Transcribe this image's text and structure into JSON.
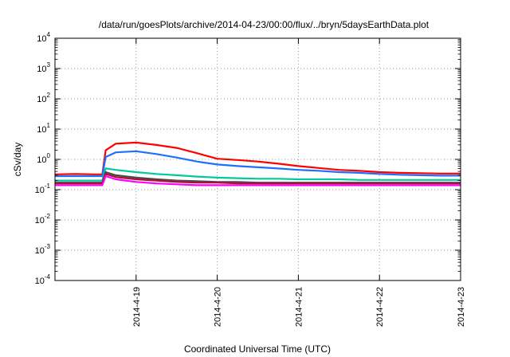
{
  "chart_data": {
    "type": "line",
    "title": "/data/run/goesPlots/archive/2014-04-23/00:00/flux/../bryn/5daysEarthData.plot",
    "xlabel": "Coordinated Universal Time (UTC)",
    "ylabel": "cSv/day",
    "yscale": "log",
    "ylim": [
      0.0001,
      10000
    ],
    "xlim": [
      "2014-04-18 00:00",
      "2014-04-23 00:00"
    ],
    "grid": true,
    "yticks": [
      {
        "base": "10",
        "exp": "-4",
        "value": 0.0001
      },
      {
        "base": "10",
        "exp": "-3",
        "value": 0.001
      },
      {
        "base": "10",
        "exp": "-2",
        "value": 0.01
      },
      {
        "base": "10",
        "exp": "-1",
        "value": 0.1
      },
      {
        "base": "10",
        "exp": "0",
        "value": 1
      },
      {
        "base": "10",
        "exp": "1",
        "value": 10
      },
      {
        "base": "10",
        "exp": "2",
        "value": 100
      },
      {
        "base": "10",
        "exp": "3",
        "value": 1000
      },
      {
        "base": "10",
        "exp": "4",
        "value": 10000
      }
    ],
    "xticks": [
      {
        "label": "2014-4-19",
        "date": "2014-04-19"
      },
      {
        "label": "2014-4-20",
        "date": "2014-04-20"
      },
      {
        "label": "2014-4-21",
        "date": "2014-04-21"
      },
      {
        "label": "2014-4-22",
        "date": "2014-04-22"
      },
      {
        "label": "2014-4-23",
        "date": "2014-04-23"
      }
    ],
    "x": [
      "2014-04-18 00:00",
      "2014-04-18 06:00",
      "2014-04-18 12:00",
      "2014-04-18 14:00",
      "2014-04-18 15:00",
      "2014-04-18 18:00",
      "2014-04-19 00:00",
      "2014-04-19 06:00",
      "2014-04-19 12:00",
      "2014-04-19 18:00",
      "2014-04-20 00:00",
      "2014-04-20 06:00",
      "2014-04-20 12:00",
      "2014-04-20 18:00",
      "2014-04-21 00:00",
      "2014-04-21 06:00",
      "2014-04-21 12:00",
      "2014-04-21 18:00",
      "2014-04-22 00:00",
      "2014-04-22 06:00",
      "2014-04-22 12:00",
      "2014-04-22 18:00",
      "2014-04-23 00:00"
    ],
    "series": [
      {
        "color": "#ff0000",
        "values": [
          0.32,
          0.33,
          0.32,
          0.32,
          2.0,
          3.3,
          3.6,
          3.0,
          2.4,
          1.6,
          1.05,
          0.95,
          0.85,
          0.72,
          0.6,
          0.52,
          0.45,
          0.42,
          0.38,
          0.36,
          0.35,
          0.34,
          0.34
        ]
      },
      {
        "color": "#1f6fff",
        "values": [
          0.28,
          0.28,
          0.28,
          0.28,
          1.2,
          1.7,
          1.85,
          1.5,
          1.15,
          0.85,
          0.68,
          0.6,
          0.55,
          0.5,
          0.45,
          0.42,
          0.38,
          0.36,
          0.33,
          0.31,
          0.3,
          0.29,
          0.29
        ]
      },
      {
        "color": "#00c8a0",
        "values": [
          0.2,
          0.2,
          0.2,
          0.2,
          0.5,
          0.45,
          0.38,
          0.33,
          0.3,
          0.27,
          0.25,
          0.24,
          0.23,
          0.23,
          0.22,
          0.22,
          0.22,
          0.21,
          0.21,
          0.21,
          0.21,
          0.21,
          0.21
        ]
      },
      {
        "color": "#4a4a4a",
        "values": [
          0.17,
          0.17,
          0.17,
          0.17,
          0.38,
          0.3,
          0.25,
          0.22,
          0.2,
          0.19,
          0.18,
          0.18,
          0.17,
          0.17,
          0.17,
          0.17,
          0.17,
          0.17,
          0.17,
          0.17,
          0.17,
          0.17,
          0.17
        ]
      },
      {
        "color": "#b01030",
        "values": [
          0.16,
          0.16,
          0.16,
          0.16,
          0.33,
          0.26,
          0.22,
          0.2,
          0.18,
          0.17,
          0.17,
          0.16,
          0.16,
          0.16,
          0.16,
          0.16,
          0.16,
          0.16,
          0.16,
          0.16,
          0.16,
          0.16,
          0.16
        ]
      },
      {
        "color": "#ff00ff",
        "values": [
          0.14,
          0.14,
          0.14,
          0.14,
          0.28,
          0.22,
          0.18,
          0.16,
          0.15,
          0.14,
          0.14,
          0.14,
          0.14,
          0.14,
          0.14,
          0.14,
          0.14,
          0.14,
          0.14,
          0.14,
          0.14,
          0.14,
          0.14
        ]
      }
    ]
  }
}
